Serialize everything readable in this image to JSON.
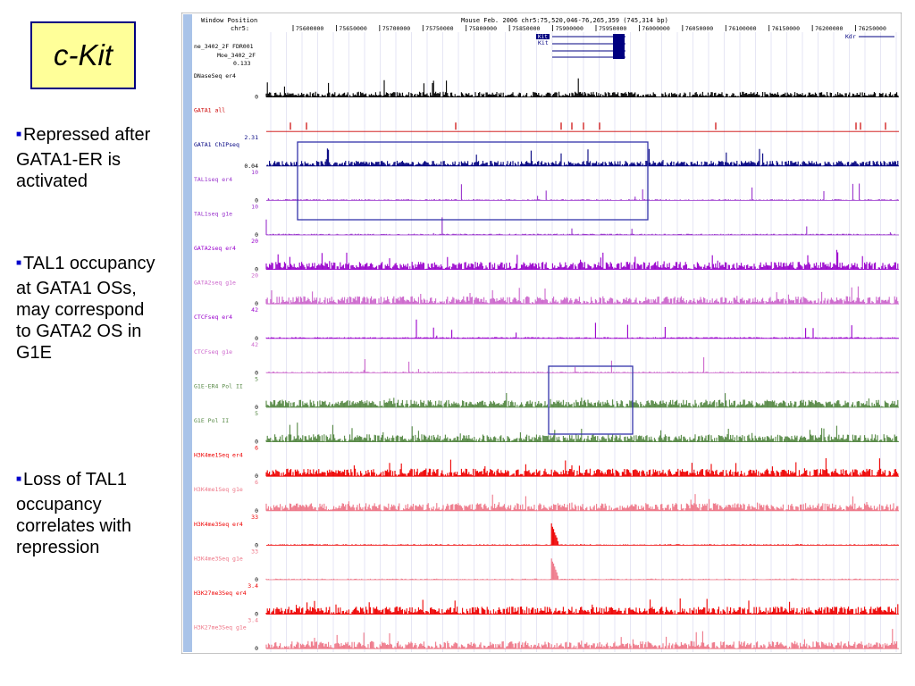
{
  "title": "c-Kit",
  "bullets": [
    "Repressed after GATA1-ER is activated",
    "TAL1 occupancy at GATA1 OSs, may correspond to GATA2 OS in G1E",
    "Loss of TAL1 occupancy correlates with repression"
  ],
  "browser": {
    "header_left": "Window Position",
    "chrom_label": "chr5:",
    "header_center": "Mouse Feb. 2006   chr5:75,520,046-76,265,359 (745,314 bp)",
    "positions": [
      "75600000",
      "75650000",
      "75700000",
      "75750000",
      "75800000",
      "75850000",
      "75900000",
      "75950000",
      "76000000",
      "76050000",
      "76100000",
      "76150000",
      "76200000",
      "76250000"
    ],
    "gene_labels": [
      "Kit",
      "Kit",
      "Kdr"
    ],
    "snp_labels": [
      "ne_3402_2F FDR001",
      "Moe_3402_2F",
      "0.133"
    ],
    "colors": {
      "black": "#000000",
      "red": "#cc0000",
      "navy": "#000080",
      "purple": "#9933cc",
      "violet": "#9900cc",
      "pink_purple": "#cc66cc",
      "green": "#558844",
      "bright_red": "#ee0000",
      "pink": "#ee7788",
      "box": "#3333aa",
      "side": "#a9c3e8"
    },
    "tracks": [
      {
        "name": "DNaseSeq er4",
        "max": "",
        "min": "0",
        "color": "black",
        "kind": "signal"
      },
      {
        "name": "GATA1 all",
        "max": "",
        "min": "",
        "color": "red",
        "kind": "ticks"
      },
      {
        "name": "GATA1 ChIPseq",
        "max": "2.31",
        "min": "0.04",
        "color": "navy",
        "kind": "signal"
      },
      {
        "name": "TAL1seq er4",
        "max": "10",
        "min": "0",
        "color": "purple",
        "kind": "sparse"
      },
      {
        "name": "TAL1seq g1e",
        "max": "10",
        "min": "0",
        "color": "purple",
        "kind": "sparse"
      },
      {
        "name": "GATA2seq er4",
        "max": "20",
        "min": "0",
        "color": "violet",
        "kind": "dense"
      },
      {
        "name": "GATA2seq g1e",
        "max": "20",
        "min": "0",
        "color": "pink_purple",
        "kind": "dense"
      },
      {
        "name": "CTCFseq er4",
        "max": "42",
        "min": "0",
        "color": "violet",
        "kind": "sparse"
      },
      {
        "name": "CTCFseq g1e",
        "max": "42",
        "min": "0",
        "color": "pink_purple",
        "kind": "sparse"
      },
      {
        "name": "G1E-ER4 Pol II",
        "max": "5",
        "min": "0",
        "color": "green",
        "kind": "dense"
      },
      {
        "name": "G1E Pol II",
        "max": "5",
        "min": "0",
        "color": "green",
        "kind": "dense"
      },
      {
        "name": "H3K4me1Seq er4",
        "max": "6",
        "min": "0",
        "color": "bright_red",
        "kind": "dense"
      },
      {
        "name": "H3K4me1Seq g1e",
        "max": "6",
        "min": "0",
        "color": "pink",
        "kind": "dense"
      },
      {
        "name": "H3K4me3Seq er4",
        "max": "33",
        "min": "0",
        "color": "bright_red",
        "kind": "peak"
      },
      {
        "name": "H3K4me3Seq g1e",
        "max": "33",
        "min": "0",
        "color": "pink",
        "kind": "peak"
      },
      {
        "name": "H3K27me3Seq er4",
        "max": "3.4",
        "min": "0",
        "color": "bright_red",
        "kind": "dense"
      },
      {
        "name": "H3K27me3Seq g1e",
        "max": "3.4",
        "min": "0",
        "color": "pink",
        "kind": "dense"
      }
    ]
  }
}
